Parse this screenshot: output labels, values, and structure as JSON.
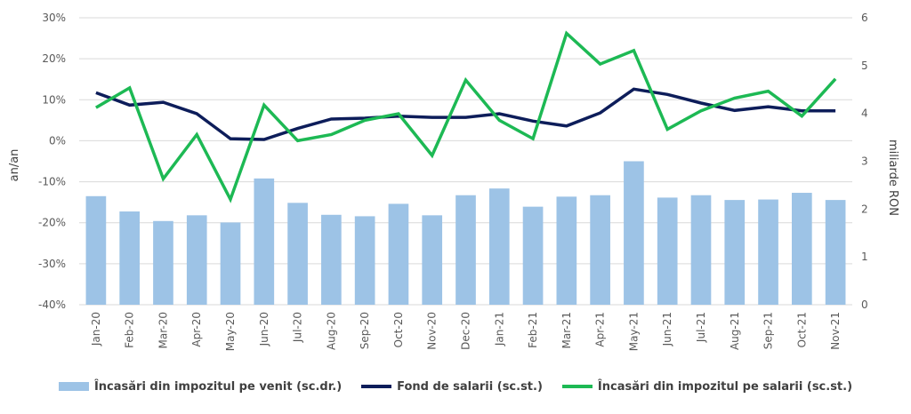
{
  "chart_data": {
    "type": "bar+line",
    "categories": [
      "Jan-20",
      "Feb-20",
      "Mar-20",
      "Apr-20",
      "May-20",
      "Jun-20",
      "Jul-20",
      "Aug-20",
      "Sep-20",
      "Oct-20",
      "Nov-20",
      "Dec-20",
      "Jan-21",
      "Feb-21",
      "Mar-21",
      "Apr-21",
      "May-21",
      "Jun-21",
      "Jul-21",
      "Aug-21",
      "Sep-21",
      "Oct-21",
      "Nov-21"
    ],
    "series": [
      {
        "name": "Încasări din impozitul pe venit (sc.dr.)",
        "type": "bar",
        "axis": "right",
        "color": "#9dc3e6",
        "values": [
          2.27,
          1.95,
          1.75,
          1.87,
          1.72,
          2.64,
          2.13,
          1.88,
          1.85,
          2.11,
          1.87,
          2.29,
          2.43,
          2.05,
          2.26,
          2.29,
          3.0,
          2.24,
          2.29,
          2.19,
          2.2,
          2.34,
          2.19
        ]
      },
      {
        "name": "Fond de salarii (sc.st.)",
        "type": "line",
        "axis": "left",
        "color": "#0d1d5a",
        "values": [
          11.7,
          8.7,
          9.4,
          6.6,
          0.5,
          0.3,
          3.0,
          5.3,
          5.5,
          6.0,
          5.7,
          5.7,
          6.6,
          4.8,
          3.6,
          6.8,
          12.6,
          11.3,
          9.2,
          7.4,
          8.3,
          7.3,
          7.3
        ]
      },
      {
        "name": "Încasări din impozitul pe salarii (sc.st.)",
        "type": "line",
        "axis": "left",
        "color": "#1db954",
        "values": [
          8.1,
          12.9,
          -9.3,
          1.5,
          -14.3,
          8.7,
          0.0,
          1.5,
          5.0,
          6.6,
          -3.6,
          14.8,
          5.0,
          0.5,
          26.2,
          18.7,
          22.0,
          2.8,
          7.3,
          10.4,
          12.1,
          6.0,
          15.1
        ]
      }
    ],
    "y_left": {
      "label": "an/an",
      "ylim": [
        -40,
        30
      ],
      "ticks": [
        "30%",
        "20%",
        "10%",
        "0%",
        "-10%",
        "-20%",
        "-30%",
        "-40%"
      ]
    },
    "y_right": {
      "label": "miliarde RON",
      "ylim": [
        0,
        6
      ],
      "ticks": [
        "6",
        "5",
        "4",
        "3",
        "2",
        "1",
        "0"
      ]
    },
    "grid": true,
    "legend_position": "bottom"
  }
}
